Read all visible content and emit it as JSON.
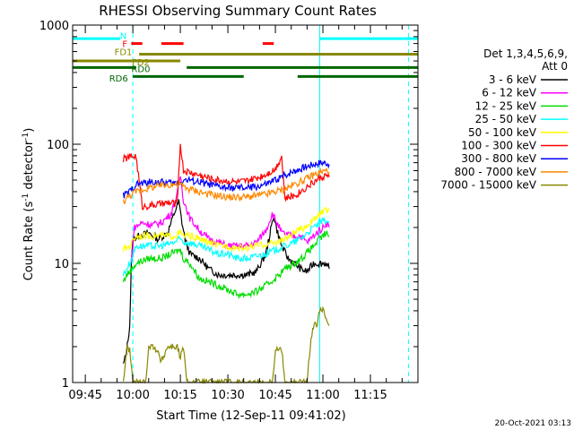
{
  "chart_data": {
    "type": "line",
    "title": "RHESSI Observing Summary Count Rates",
    "xlabel": "Start Time (12-Sep-11 09:41:02)",
    "ylabel_main": "Count Rate (s",
    "ylabel_exp1": "-1",
    "ylabel_mid": " detector",
    "ylabel_exp2": "-1",
    "ylabel_end": ")",
    "yscale": "log",
    "ylim": [
      1,
      1000
    ],
    "xlim_min": [
      -4,
      105
    ],
    "x_unit": "minutes since 09:45",
    "x_ticks": [
      {
        "min": 0,
        "label": "09:45"
      },
      {
        "min": 15,
        "label": "10:00"
      },
      {
        "min": 30,
        "label": "10:15"
      },
      {
        "min": 45,
        "label": "10:30"
      },
      {
        "min": 60,
        "label": "10:45"
      },
      {
        "min": 75,
        "label": "11:00"
      },
      {
        "min": 90,
        "label": "11:15"
      }
    ],
    "y_ticks": [
      {
        "value": 1,
        "label": "1"
      },
      {
        "value": 10,
        "label": "10"
      },
      {
        "value": 100,
        "label": "100"
      },
      {
        "value": 1000,
        "label": "1000"
      }
    ],
    "legend_header": [
      "Det 1,3,4,5,6,9,",
      "Att 0"
    ],
    "legend_placement": "right",
    "series": [
      {
        "name": "3 - 6 keV",
        "color": "#000000",
        "points": [
          [
            12,
            1.4
          ],
          [
            13,
            1.8
          ],
          [
            14,
            3
          ],
          [
            14.5,
            9
          ],
          [
            15,
            16
          ],
          [
            17,
            17
          ],
          [
            20,
            18
          ],
          [
            23,
            16
          ],
          [
            26,
            18
          ],
          [
            28,
            26
          ],
          [
            29.5,
            33
          ],
          [
            30.5,
            22
          ],
          [
            31.5,
            16
          ],
          [
            33,
            12
          ],
          [
            36,
            11
          ],
          [
            39,
            9
          ],
          [
            42,
            8
          ],
          [
            45,
            8
          ],
          [
            48,
            8
          ],
          [
            51,
            8
          ],
          [
            54,
            8.5
          ],
          [
            57,
            12
          ],
          [
            58.5,
            19
          ],
          [
            59.5,
            25
          ],
          [
            60.5,
            19
          ],
          [
            62,
            14
          ],
          [
            64,
            11
          ],
          [
            66,
            10
          ],
          [
            68,
            9
          ],
          [
            70,
            8.5
          ],
          [
            72,
            10
          ],
          [
            74,
            10
          ],
          [
            76,
            10
          ],
          [
            77,
            9
          ]
        ]
      },
      {
        "name": "6 - 12 keV",
        "color": "#ff00ff",
        "points": [
          [
            14.5,
            10
          ],
          [
            15.5,
            20
          ],
          [
            18,
            22
          ],
          [
            21,
            21
          ],
          [
            24,
            22
          ],
          [
            27,
            26
          ],
          [
            29,
            38
          ],
          [
            30,
            55
          ],
          [
            31,
            34
          ],
          [
            33,
            24
          ],
          [
            36,
            19
          ],
          [
            39,
            16
          ],
          [
            42,
            15
          ],
          [
            45,
            14
          ],
          [
            48,
            14
          ],
          [
            51,
            14
          ],
          [
            54,
            15
          ],
          [
            57,
            19
          ],
          [
            59,
            26
          ],
          [
            60.5,
            22
          ],
          [
            62,
            18
          ],
          [
            65,
            17
          ],
          [
            68,
            17
          ],
          [
            70,
            15
          ],
          [
            73,
            18
          ],
          [
            75,
            20
          ],
          [
            76,
            22
          ],
          [
            77,
            20
          ]
        ]
      },
      {
        "name": "12 - 25 keV",
        "color": "#00dd00",
        "points": [
          [
            12,
            7
          ],
          [
            13,
            8
          ],
          [
            14,
            8.5
          ],
          [
            16,
            10
          ],
          [
            20,
            11
          ],
          [
            24,
            11
          ],
          [
            27,
            12
          ],
          [
            30,
            13
          ],
          [
            31,
            11
          ],
          [
            33,
            10
          ],
          [
            36,
            7.5
          ],
          [
            39,
            7
          ],
          [
            42,
            6.5
          ],
          [
            45,
            6
          ],
          [
            48,
            5.5
          ],
          [
            51,
            5.5
          ],
          [
            54,
            5.8
          ],
          [
            57,
            6.5
          ],
          [
            60,
            7.5
          ],
          [
            63,
            9
          ],
          [
            66,
            10
          ],
          [
            69,
            11.5
          ],
          [
            72,
            14
          ],
          [
            74,
            16
          ],
          [
            76,
            18
          ],
          [
            77,
            17
          ]
        ]
      },
      {
        "name": "25 - 50 keV",
        "color": "#00ffff",
        "points": [
          [
            12,
            8
          ],
          [
            13,
            9
          ],
          [
            14,
            10
          ],
          [
            16,
            14
          ],
          [
            20,
            14
          ],
          [
            24,
            14
          ],
          [
            28,
            15
          ],
          [
            30,
            16
          ],
          [
            31,
            15
          ],
          [
            33,
            15
          ],
          [
            36,
            14
          ],
          [
            39,
            13
          ],
          [
            42,
            12
          ],
          [
            45,
            12
          ],
          [
            48,
            11
          ],
          [
            51,
            11
          ],
          [
            54,
            11.5
          ],
          [
            57,
            12
          ],
          [
            60,
            13
          ],
          [
            63,
            14
          ],
          [
            66,
            15
          ],
          [
            69,
            17
          ],
          [
            72,
            20
          ],
          [
            74,
            22
          ],
          [
            76,
            23
          ],
          [
            77,
            22
          ]
        ]
      },
      {
        "name": "50 - 100 keV",
        "color": "#ffff00",
        "points": [
          [
            12,
            13
          ],
          [
            14,
            14
          ],
          [
            16,
            17
          ],
          [
            20,
            17
          ],
          [
            24,
            17
          ],
          [
            28,
            17
          ],
          [
            30,
            18
          ],
          [
            31,
            17
          ],
          [
            33,
            17
          ],
          [
            36,
            16
          ],
          [
            39,
            15
          ],
          [
            42,
            14
          ],
          [
            45,
            14
          ],
          [
            48,
            13.5
          ],
          [
            51,
            13.5
          ],
          [
            54,
            14
          ],
          [
            57,
            14.5
          ],
          [
            60,
            15
          ],
          [
            63,
            16
          ],
          [
            66,
            18
          ],
          [
            69,
            20
          ],
          [
            72,
            23
          ],
          [
            74,
            26
          ],
          [
            76,
            28
          ],
          [
            77,
            28
          ]
        ]
      },
      {
        "name": "100 - 300 keV",
        "color": "#ff0000",
        "points": [
          [
            12,
            75
          ],
          [
            14,
            78
          ],
          [
            16,
            80
          ],
          [
            18,
            30
          ],
          [
            22,
            31
          ],
          [
            26,
            32
          ],
          [
            29,
            32
          ],
          [
            30,
            100
          ],
          [
            31,
            60
          ],
          [
            33,
            58
          ],
          [
            36,
            55
          ],
          [
            39,
            52
          ],
          [
            42,
            50
          ],
          [
            45,
            49
          ],
          [
            48,
            48
          ],
          [
            51,
            49
          ],
          [
            54,
            52
          ],
          [
            57,
            56
          ],
          [
            60,
            62
          ],
          [
            62,
            80
          ],
          [
            63,
            35
          ],
          [
            66,
            37
          ],
          [
            69,
            42
          ],
          [
            72,
            48
          ],
          [
            74,
            52
          ],
          [
            76,
            55
          ],
          [
            77,
            53
          ]
        ]
      },
      {
        "name": "300 - 800 keV",
        "color": "#0000ff",
        "points": [
          [
            12,
            37
          ],
          [
            14,
            40
          ],
          [
            16,
            46
          ],
          [
            20,
            48
          ],
          [
            24,
            48
          ],
          [
            28,
            47
          ],
          [
            30,
            48
          ],
          [
            31,
            50
          ],
          [
            33,
            50
          ],
          [
            36,
            48
          ],
          [
            39,
            46
          ],
          [
            42,
            44
          ],
          [
            45,
            43
          ],
          [
            48,
            43
          ],
          [
            51,
            43
          ],
          [
            54,
            44
          ],
          [
            57,
            46
          ],
          [
            60,
            50
          ],
          [
            63,
            55
          ],
          [
            66,
            60
          ],
          [
            69,
            64
          ],
          [
            72,
            68
          ],
          [
            74,
            70
          ],
          [
            76,
            70
          ],
          [
            77,
            68
          ]
        ]
      },
      {
        "name": "800 - 7000 keV",
        "color": "#ff8800",
        "points": [
          [
            12,
            33
          ],
          [
            14,
            37
          ],
          [
            16,
            40
          ],
          [
            20,
            43
          ],
          [
            24,
            45
          ],
          [
            27,
            46
          ],
          [
            30,
            46
          ],
          [
            31,
            44
          ],
          [
            33,
            42
          ],
          [
            36,
            40
          ],
          [
            39,
            38
          ],
          [
            42,
            37
          ],
          [
            45,
            36
          ],
          [
            48,
            36
          ],
          [
            51,
            36
          ],
          [
            54,
            37
          ],
          [
            57,
            38
          ],
          [
            60,
            40
          ],
          [
            63,
            42
          ],
          [
            66,
            46
          ],
          [
            69,
            50
          ],
          [
            72,
            55
          ],
          [
            74,
            58
          ],
          [
            76,
            60
          ],
          [
            77,
            58
          ]
        ]
      },
      {
        "name": "7000 - 15000 keV",
        "color": "#888800",
        "points": [
          [
            12,
            1
          ],
          [
            13,
            1.9
          ],
          [
            14,
            1.9
          ],
          [
            15,
            1
          ],
          [
            19,
            1
          ],
          [
            20,
            2
          ],
          [
            22,
            2
          ],
          [
            24,
            1.5
          ],
          [
            26,
            2
          ],
          [
            29,
            2
          ],
          [
            30,
            1.6
          ],
          [
            31,
            2
          ],
          [
            32,
            1
          ],
          [
            59,
            1
          ],
          [
            60,
            1.9
          ],
          [
            62,
            1.9
          ],
          [
            63,
            1
          ],
          [
            70,
            1
          ],
          [
            71,
            2
          ],
          [
            72,
            3
          ],
          [
            73,
            3
          ],
          [
            74,
            4
          ],
          [
            75,
            4
          ],
          [
            76,
            3.5
          ],
          [
            77,
            3
          ]
        ]
      }
    ],
    "annotations": [
      {
        "label": "N",
        "color": "#00ffff",
        "y": 770,
        "segments": [
          [
            -4,
            11
          ],
          [
            74,
            105
          ]
        ],
        "label_x": 12,
        "label_y": 820
      },
      {
        "label": "F",
        "color": "#ff0000",
        "y": 700,
        "segments": [
          [
            14.5,
            18
          ],
          [
            24,
            31
          ],
          [
            56,
            59.5
          ]
        ],
        "label_x": 12.5,
        "label_y": 700
      },
      {
        "label": "FD1",
        "color": "#888800",
        "y": 570,
        "segments": [
          [
            17,
            105
          ]
        ],
        "label_x": 12,
        "label_y": 600
      },
      {
        "label": "FD2",
        "color": "#888800",
        "y": 500,
        "segments": [
          [
            -4,
            30
          ]
        ],
        "label_x": 17.5,
        "label_y": 490
      },
      {
        "label": "RD0",
        "color": "#006600",
        "y": 440,
        "segments": [
          [
            -4,
            16
          ],
          [
            32,
            105
          ]
        ],
        "label_x": 17.5,
        "label_y": 430
      },
      {
        "label": "RD6",
        "color": "#006600",
        "y": 370,
        "segments": [
          [
            15,
            50
          ],
          [
            67,
            105
          ]
        ],
        "label_x": 10.5,
        "label_y": 360
      }
    ],
    "vlines": [
      {
        "min": -4,
        "style": "solid",
        "color": "#00ffff"
      },
      {
        "min": 15,
        "style": "dashed",
        "color": "#00ffff"
      },
      {
        "min": 74,
        "style": "solid",
        "color": "#00ffff"
      },
      {
        "min": 102,
        "style": "dashed",
        "color": "#00ffff"
      }
    ]
  },
  "footer": {
    "date": "20-Oct-2021 03:13"
  }
}
